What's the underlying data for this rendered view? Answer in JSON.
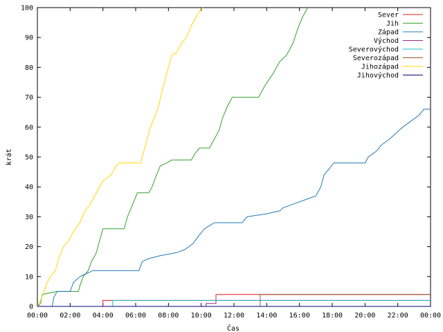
{
  "chart_data": {
    "type": "line",
    "title": "",
    "xlabel": "Čas",
    "ylabel": "krát",
    "xlim": [
      0,
      24
    ],
    "ylim": [
      0,
      100
    ],
    "xticks": [
      "00:00",
      "02:00",
      "04:00",
      "06:00",
      "08:00",
      "10:00",
      "12:00",
      "14:00",
      "16:00",
      "18:00",
      "20:00",
      "22:00",
      "00:00"
    ],
    "yticks": [
      "0",
      "10",
      "20",
      "30",
      "40",
      "50",
      "60",
      "70",
      "80",
      "90",
      "100"
    ],
    "legend": "top-right",
    "grid": false,
    "series": [
      {
        "name": "Sever",
        "color": "#e41a1c",
        "points": [
          [
            0,
            0
          ],
          [
            4.0,
            0
          ],
          [
            4.0,
            2
          ],
          [
            10.9,
            2
          ],
          [
            10.9,
            4
          ],
          [
            24,
            4
          ]
        ]
      },
      {
        "name": "Jih",
        "color": "#33a02c",
        "points": [
          [
            0,
            0
          ],
          [
            0.2,
            1
          ],
          [
            0.3,
            4
          ],
          [
            1.2,
            5
          ],
          [
            2.5,
            5
          ],
          [
            2.6,
            7
          ],
          [
            2.8,
            10
          ],
          [
            3.1,
            12
          ],
          [
            3.3,
            15
          ],
          [
            3.6,
            18
          ],
          [
            3.8,
            22
          ],
          [
            4.0,
            26
          ],
          [
            5.3,
            26
          ],
          [
            5.5,
            30
          ],
          [
            5.8,
            34
          ],
          [
            6.1,
            38
          ],
          [
            6.8,
            38
          ],
          [
            7.0,
            40
          ],
          [
            7.2,
            43
          ],
          [
            7.5,
            47
          ],
          [
            7.9,
            48
          ],
          [
            8.2,
            49
          ],
          [
            9.4,
            49
          ],
          [
            9.6,
            51
          ],
          [
            9.9,
            53
          ],
          [
            10.5,
            53
          ],
          [
            10.8,
            56
          ],
          [
            11.1,
            59
          ],
          [
            11.3,
            63
          ],
          [
            11.6,
            67
          ],
          [
            11.9,
            70
          ],
          [
            13.5,
            70
          ],
          [
            13.9,
            74
          ],
          [
            14.4,
            78
          ],
          [
            14.8,
            82
          ],
          [
            15.2,
            84
          ],
          [
            15.6,
            88
          ],
          [
            15.9,
            93
          ],
          [
            16.2,
            97
          ],
          [
            16.5,
            100
          ]
        ]
      },
      {
        "name": "Západ",
        "color": "#1f78b4",
        "points": [
          [
            0,
            0
          ],
          [
            0.9,
            0
          ],
          [
            1.0,
            3
          ],
          [
            1.2,
            5
          ],
          [
            2.0,
            5
          ],
          [
            2.2,
            8
          ],
          [
            2.6,
            10
          ],
          [
            3.0,
            11
          ],
          [
            3.4,
            12
          ],
          [
            6.2,
            12
          ],
          [
            6.4,
            15
          ],
          [
            6.8,
            16
          ],
          [
            7.5,
            17
          ],
          [
            8.5,
            18
          ],
          [
            9.0,
            19
          ],
          [
            9.5,
            21
          ],
          [
            9.9,
            24
          ],
          [
            10.2,
            26
          ],
          [
            10.5,
            27
          ],
          [
            10.8,
            28
          ],
          [
            12.5,
            28
          ],
          [
            12.8,
            30
          ],
          [
            14.0,
            31
          ],
          [
            14.8,
            32
          ],
          [
            15.0,
            33
          ],
          [
            16.0,
            35
          ],
          [
            16.5,
            36
          ],
          [
            17.0,
            37
          ],
          [
            17.3,
            40
          ],
          [
            17.5,
            44
          ],
          [
            17.8,
            46
          ],
          [
            18.1,
            48
          ],
          [
            20.0,
            48
          ],
          [
            20.2,
            50
          ],
          [
            20.7,
            52
          ],
          [
            21.0,
            54
          ],
          [
            21.5,
            56
          ],
          [
            21.9,
            58
          ],
          [
            22.3,
            60
          ],
          [
            22.8,
            62
          ],
          [
            23.3,
            64
          ],
          [
            23.6,
            66
          ],
          [
            24,
            66
          ]
        ]
      },
      {
        "name": "Východ",
        "color": "#a6228a",
        "points": [
          [
            0,
            0
          ],
          [
            10.3,
            0
          ],
          [
            10.3,
            1
          ],
          [
            10.9,
            1
          ],
          [
            10.9,
            2
          ],
          [
            24,
            2
          ]
        ]
      },
      {
        "name": "Severovýchod",
        "color": "#17becf",
        "points": [
          [
            0,
            0
          ],
          [
            4.6,
            0
          ],
          [
            4.6,
            2
          ],
          [
            24,
            2
          ]
        ]
      },
      {
        "name": "Severozápad",
        "color": "#a0522d",
        "points": [
          [
            0,
            0
          ],
          [
            13.6,
            0
          ],
          [
            13.6,
            4
          ],
          [
            24,
            4
          ]
        ]
      },
      {
        "name": "Jihozápad",
        "color": "#ffd700",
        "points": [
          [
            0,
            0
          ],
          [
            0.2,
            2
          ],
          [
            0.4,
            5
          ],
          [
            0.6,
            8
          ],
          [
            0.8,
            10
          ],
          [
            1.1,
            12
          ],
          [
            1.3,
            16
          ],
          [
            1.6,
            20
          ],
          [
            1.9,
            22
          ],
          [
            2.2,
            25
          ],
          [
            2.6,
            28
          ],
          [
            2.9,
            32
          ],
          [
            3.2,
            34
          ],
          [
            3.5,
            37
          ],
          [
            3.8,
            40
          ],
          [
            4.0,
            42
          ],
          [
            4.5,
            44
          ],
          [
            4.8,
            47
          ],
          [
            5.0,
            48
          ],
          [
            6.3,
            48
          ],
          [
            6.5,
            52
          ],
          [
            6.7,
            56
          ],
          [
            6.9,
            60
          ],
          [
            7.2,
            64
          ],
          [
            7.4,
            67
          ],
          [
            7.6,
            72
          ],
          [
            7.8,
            76
          ],
          [
            8.0,
            80
          ],
          [
            8.2,
            84
          ],
          [
            8.5,
            85
          ],
          [
            8.8,
            88
          ],
          [
            9.1,
            90
          ],
          [
            9.4,
            94
          ],
          [
            9.7,
            97
          ],
          [
            9.9,
            99
          ],
          [
            10.1,
            100
          ]
        ]
      },
      {
        "name": "Jihovýchod",
        "color": "#000080",
        "points": [
          [
            0,
            0
          ],
          [
            24,
            0
          ]
        ]
      }
    ]
  }
}
